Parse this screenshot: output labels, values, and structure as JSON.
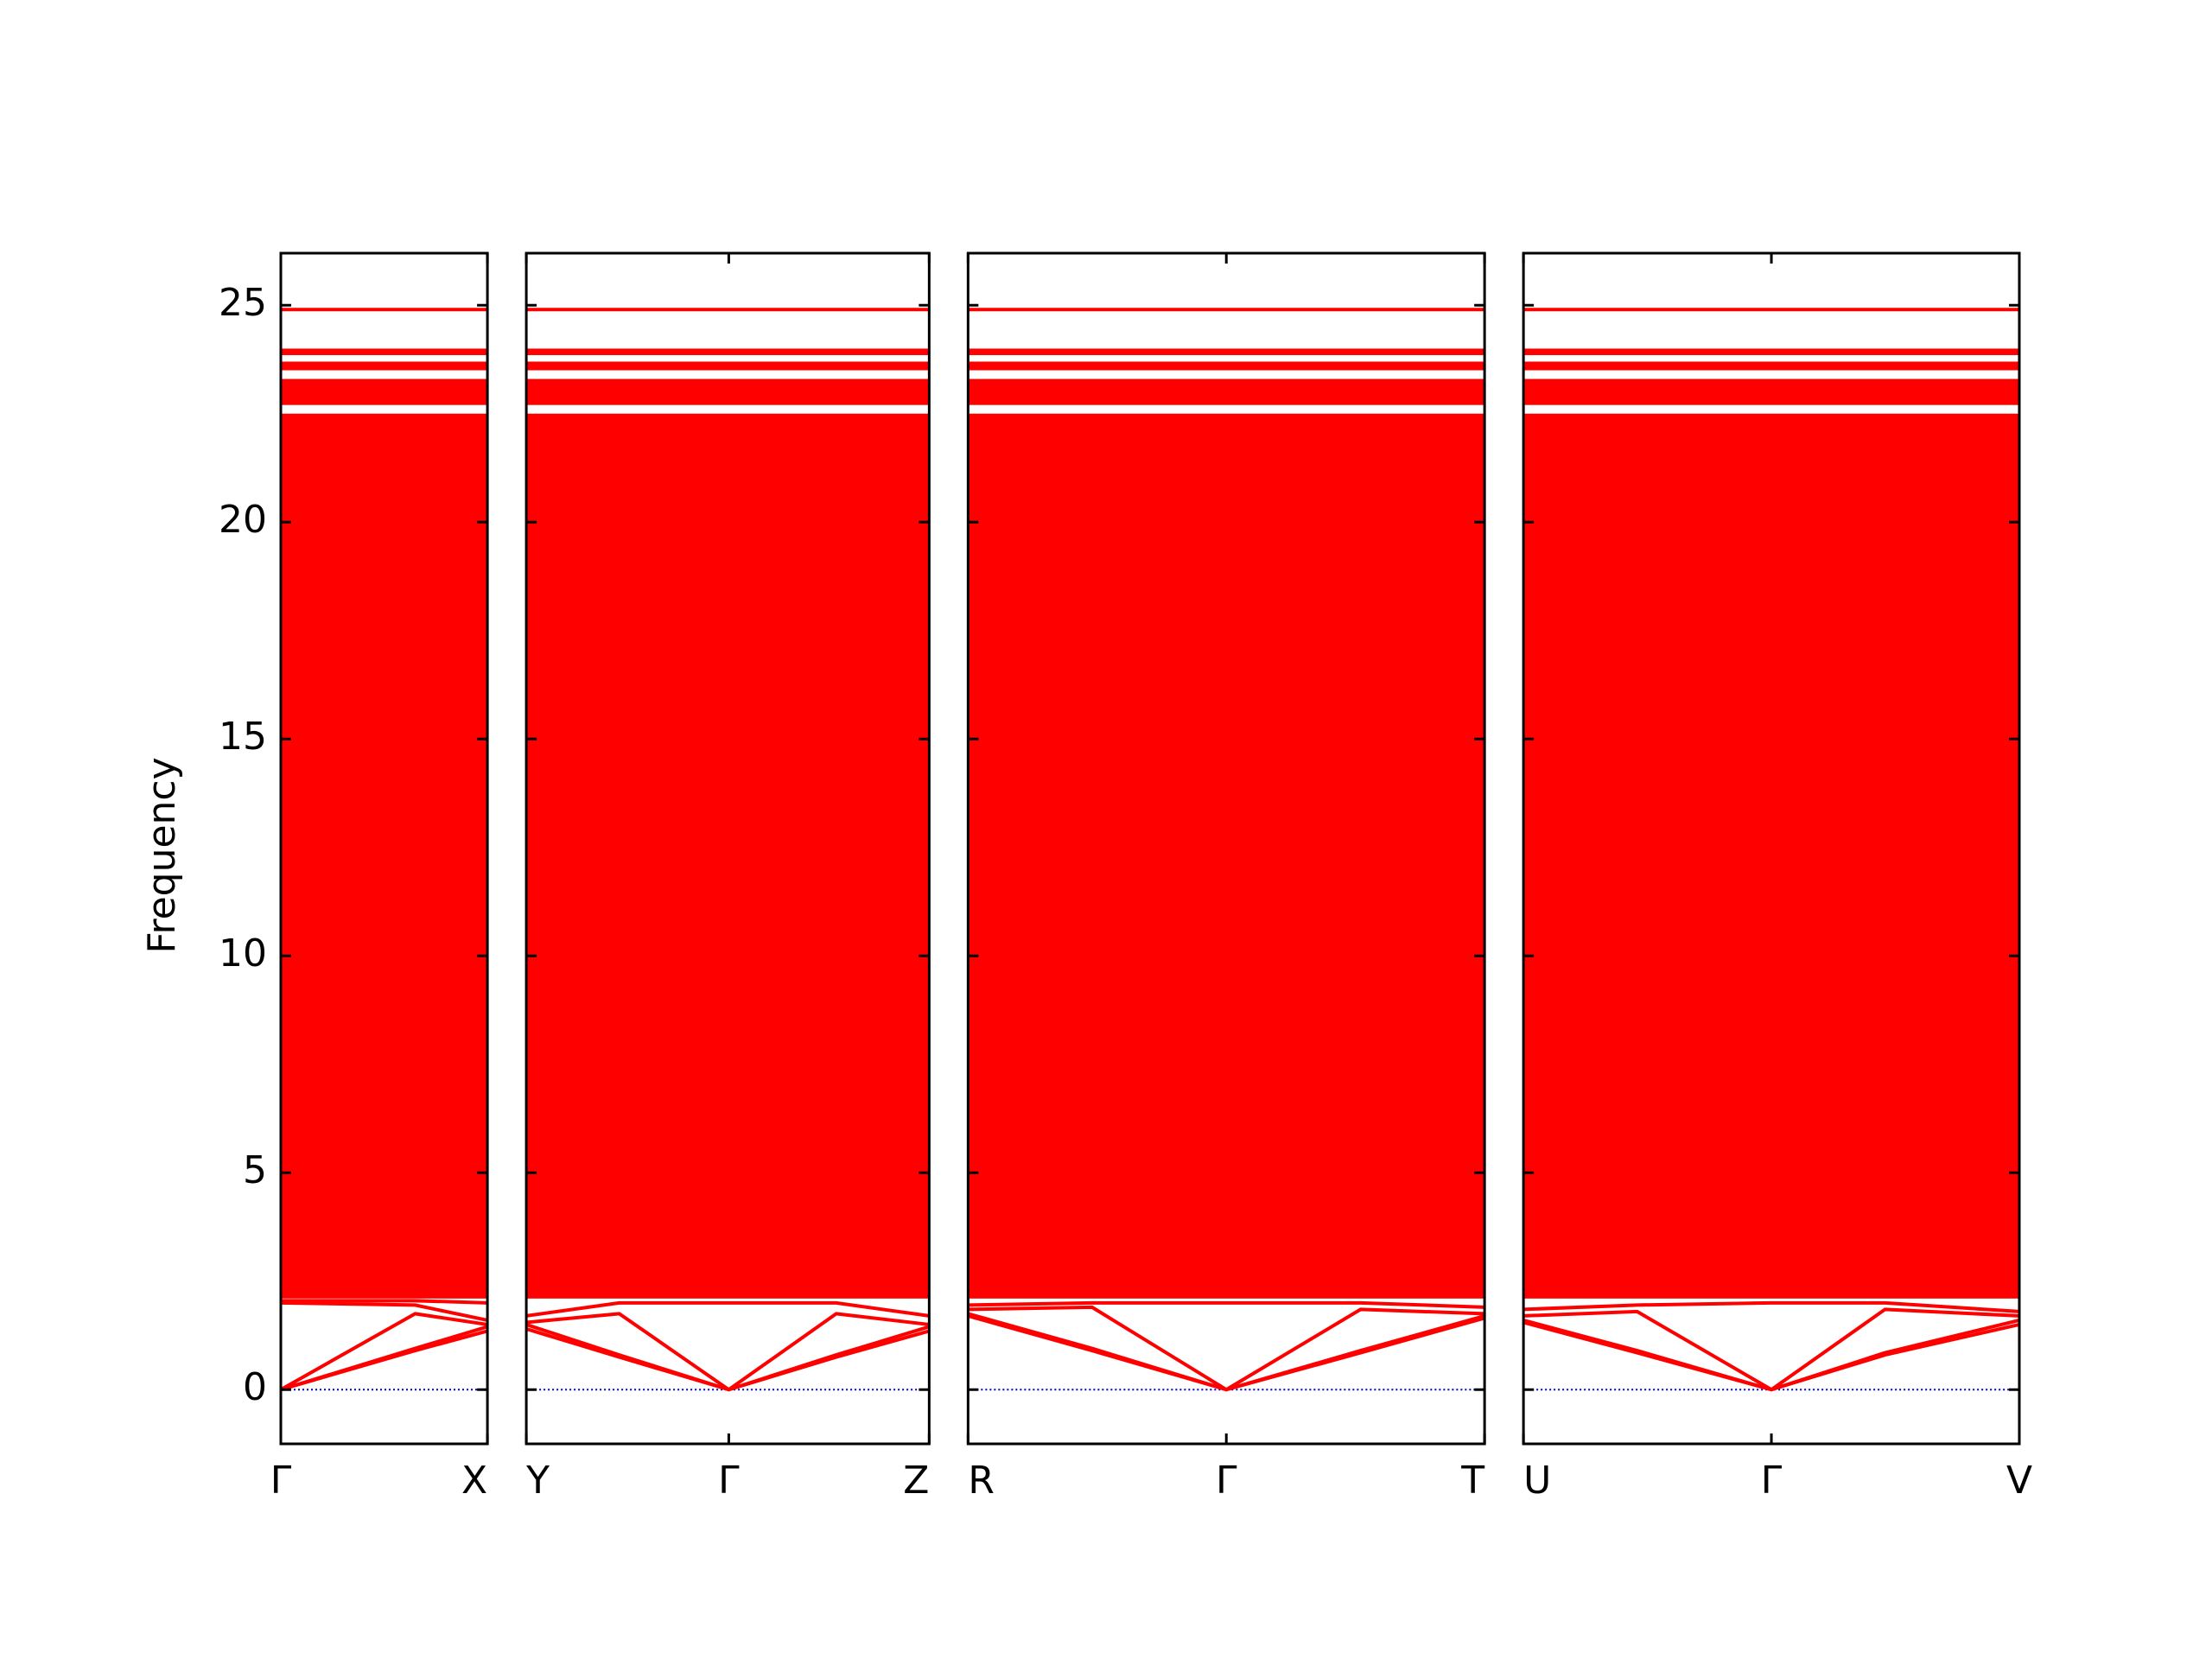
{
  "chart_data": {
    "type": "line",
    "ylabel": "Frequency",
    "color": "#ff0000",
    "ylim": [
      -1.25,
      26.2
    ],
    "yticks": [
      0,
      5,
      10,
      15,
      20,
      25
    ],
    "reference_line": {
      "value": 0,
      "color": "#0000cc"
    },
    "band_ranges": [
      [
        2.1,
        22.5
      ],
      [
        22.7,
        23.3
      ],
      [
        23.5,
        23.7
      ],
      [
        23.85,
        24.0
      ]
    ],
    "panels": [
      {
        "x": [
          0,
          0.65,
          1
        ],
        "xticks": [
          {
            "value": 0,
            "label": "Γ"
          },
          {
            "value": 1,
            "label": "X"
          }
        ],
        "series": [
          {
            "values": [
              0,
              0.9,
              1.35
            ]
          },
          {
            "values": [
              0,
              0.95,
              1.45
            ]
          },
          {
            "values": [
              0,
              1.75,
              1.5
            ]
          },
          {
            "values": [
              2.0,
              1.95,
              1.6
            ]
          },
          {
            "values": [
              2.05,
              2.05,
              2.0
            ]
          },
          {
            "values": [
              24.9,
              24.9,
              24.9
            ]
          }
        ]
      },
      {
        "x": [
          0,
          0.45,
          0.98,
          1.5,
          1.95
        ],
        "xticks": [
          {
            "value": 0,
            "label": "Y"
          },
          {
            "value": 0.98,
            "label": "Γ"
          },
          {
            "value": 1.95,
            "label": "Z"
          }
        ],
        "series": [
          {
            "values": [
              1.4,
              0.75,
              0,
              0.75,
              1.35
            ]
          },
          {
            "values": [
              1.5,
              0.8,
              0,
              0.8,
              1.45
            ]
          },
          {
            "values": [
              1.55,
              1.75,
              0,
              1.75,
              1.5
            ]
          },
          {
            "values": [
              1.7,
              2.0,
              2.0,
              2.0,
              1.7
            ]
          },
          {
            "values": [
              24.9,
              24.9,
              24.9,
              24.9,
              24.9
            ]
          }
        ]
      },
      {
        "x": [
          0,
          0.6,
          1.25,
          1.9,
          2.5
        ],
        "xticks": [
          {
            "value": 0,
            "label": "R"
          },
          {
            "value": 1.25,
            "label": "Γ"
          },
          {
            "value": 2.5,
            "label": "T"
          }
        ],
        "series": [
          {
            "values": [
              1.7,
              0.9,
              0,
              0.85,
              1.65
            ]
          },
          {
            "values": [
              1.75,
              0.95,
              0,
              0.9,
              1.7
            ]
          },
          {
            "values": [
              1.85,
              1.9,
              0,
              1.85,
              1.75
            ]
          },
          {
            "values": [
              1.95,
              2.0,
              2.0,
              2.0,
              1.9
            ]
          },
          {
            "values": [
              24.9,
              24.9,
              24.9,
              24.9,
              24.9
            ]
          }
        ]
      },
      {
        "x": [
          0,
          0.55,
          1.2,
          1.75,
          2.4
        ],
        "xticks": [
          {
            "value": 0,
            "label": "U"
          },
          {
            "value": 1.2,
            "label": "Γ"
          },
          {
            "value": 2.4,
            "label": "V"
          }
        ],
        "series": [
          {
            "values": [
              1.55,
              0.85,
              0,
              0.8,
              1.5
            ]
          },
          {
            "values": [
              1.6,
              0.9,
              0,
              0.85,
              1.6
            ]
          },
          {
            "values": [
              1.7,
              1.8,
              0,
              1.85,
              1.7
            ]
          },
          {
            "values": [
              1.85,
              1.95,
              2.0,
              2.0,
              1.8
            ]
          },
          {
            "values": [
              24.9,
              24.9,
              24.9,
              24.9,
              24.9
            ]
          }
        ]
      }
    ]
  }
}
